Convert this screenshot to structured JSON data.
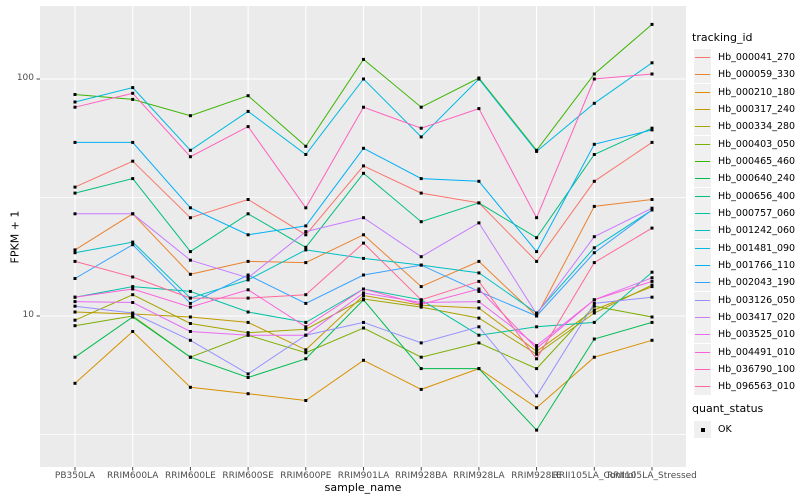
{
  "chart_data": {
    "type": "line",
    "title": "",
    "xlabel": "sample_name",
    "ylabel": "FPKM + 1",
    "y_scale": "log10",
    "y_ticks": [
      10,
      100
    ],
    "y_tick_labels": [
      "10",
      "100"
    ],
    "y_minor_ticks": [
      3.162,
      31.623
    ],
    "ylim": [
      2.3,
      203
    ],
    "grid": "on",
    "legend_position": "right",
    "legend_title": "tracking_id",
    "legend2_title": "quant_status",
    "quant_status_label": "OK",
    "categories": [
      "PB350LA",
      "RRIM600LA",
      "RRIM600LE",
      "RRIM600SE",
      "RRIM600PE",
      "RRIM901LA",
      "RRIM928BA",
      "RRIM928LA",
      "RRIM928LE",
      "RRII105LA_Control",
      "RRII105LA_Stressed"
    ],
    "series": [
      {
        "name": "Hb_000041_270",
        "color": "#F8766D",
        "values": [
          35,
          45,
          26,
          31,
          22,
          43,
          33,
          30,
          17,
          37,
          54
        ]
      },
      {
        "name": "Hb_000059_330",
        "color": "#EA8331",
        "values": [
          19,
          27,
          15,
          17,
          16.8,
          22,
          13.3,
          17,
          10,
          29,
          31
        ]
      },
      {
        "name": "Hb_000210_180",
        "color": "#D89000",
        "values": [
          5.2,
          8.6,
          5.0,
          4.7,
          4.4,
          6.5,
          4.9,
          6.0,
          4.1,
          6.7,
          7.9
        ]
      },
      {
        "name": "Hb_000317_240",
        "color": "#C09B00",
        "values": [
          10.4,
          10.2,
          9.9,
          9.4,
          7.2,
          12.2,
          11.1,
          10.8,
          7.1,
          10.6,
          13.3
        ]
      },
      {
        "name": "Hb_000334_280",
        "color": "#A3A500",
        "values": [
          9.6,
          12.3,
          9.3,
          8.5,
          8.8,
          11.8,
          10.9,
          9.8,
          6.9,
          10.3,
          13.5
        ]
      },
      {
        "name": "Hb_000403_050",
        "color": "#7CAE00",
        "values": [
          9.1,
          10.0,
          6.7,
          8.3,
          7.0,
          8.9,
          6.7,
          7.7,
          6.0,
          11.0,
          9.9
        ]
      },
      {
        "name": "Hb_000465_460",
        "color": "#39B600",
        "values": [
          86,
          82,
          70,
          85,
          52,
          121,
          76,
          101,
          50,
          105,
          170
        ]
      },
      {
        "name": "Hb_000640_240",
        "color": "#00BB4E",
        "values": [
          6.7,
          9.9,
          6.7,
          5.5,
          6.6,
          11.7,
          6.0,
          6.0,
          3.3,
          8.0,
          9.4
        ]
      },
      {
        "name": "Hb_000656_400",
        "color": "#00BF7D",
        "values": [
          33,
          38,
          18.7,
          27,
          19.5,
          40,
          25,
          30,
          21.4,
          48,
          62
        ]
      },
      {
        "name": "Hb_000757_060",
        "color": "#00C1A3",
        "values": [
          12,
          13.3,
          12.7,
          10.4,
          9.4,
          13,
          11.7,
          8.3,
          9.0,
          9.4,
          15.3
        ]
      },
      {
        "name": "Hb_001242_060",
        "color": "#00BFC4",
        "values": [
          18.5,
          20.5,
          11.9,
          14.2,
          19,
          17.5,
          16.4,
          15.2,
          10.3,
          19.4,
          28
        ]
      },
      {
        "name": "Hb_001481_090",
        "color": "#00BAE0",
        "values": [
          80,
          92,
          50,
          73,
          48,
          100,
          57,
          100,
          49.5,
          79,
          117
        ]
      },
      {
        "name": "Hb_001766_110",
        "color": "#00B0F6",
        "values": [
          54,
          54,
          28.6,
          22,
          24,
          51,
          38,
          37,
          18.7,
          53,
          61
        ]
      },
      {
        "name": "Hb_002043_190",
        "color": "#35A2FF",
        "values": [
          14.4,
          20,
          11.3,
          14.9,
          11.3,
          14.9,
          16.4,
          12.7,
          10,
          18.5,
          28
        ]
      },
      {
        "name": "Hb_003126_050",
        "color": "#9590FF",
        "values": [
          11,
          10.3,
          7.9,
          5.7,
          8.3,
          9.4,
          7.7,
          9.0,
          4.6,
          11.3,
          12
        ]
      },
      {
        "name": "Hb_003417_020",
        "color": "#C77CFF",
        "values": [
          27,
          27,
          17.2,
          14.5,
          22.7,
          26,
          17.8,
          24.7,
          10.2,
          21.6,
          28.5
        ]
      },
      {
        "name": "Hb_003525_010",
        "color": "#E76BF3",
        "values": [
          11.5,
          11.4,
          8.6,
          8.3,
          8.3,
          12.5,
          11.4,
          11.5,
          7.5,
          11.7,
          14.5
        ]
      },
      {
        "name": "Hb_004491_010",
        "color": "#FA62DB",
        "values": [
          12,
          13,
          10.9,
          12.9,
          9.0,
          13,
          11.2,
          13,
          7.3,
          11.7,
          14
        ]
      },
      {
        "name": "Hb_036790_100",
        "color": "#FF62BC",
        "values": [
          76,
          87,
          47,
          63,
          28.6,
          76,
          62,
          75,
          26,
          100,
          105
        ]
      },
      {
        "name": "Hb_096563_010",
        "color": "#FF6A98",
        "values": [
          17,
          14.6,
          11.9,
          11.9,
          12.3,
          20.3,
          11.7,
          14,
          6.6,
          16.8,
          23.5
        ]
      }
    ],
    "colors": {
      "panel_bg": "#EBEBEB",
      "grid": "#FFFFFF",
      "axis_text": "#4D4D4D",
      "marker": "#000000"
    }
  }
}
